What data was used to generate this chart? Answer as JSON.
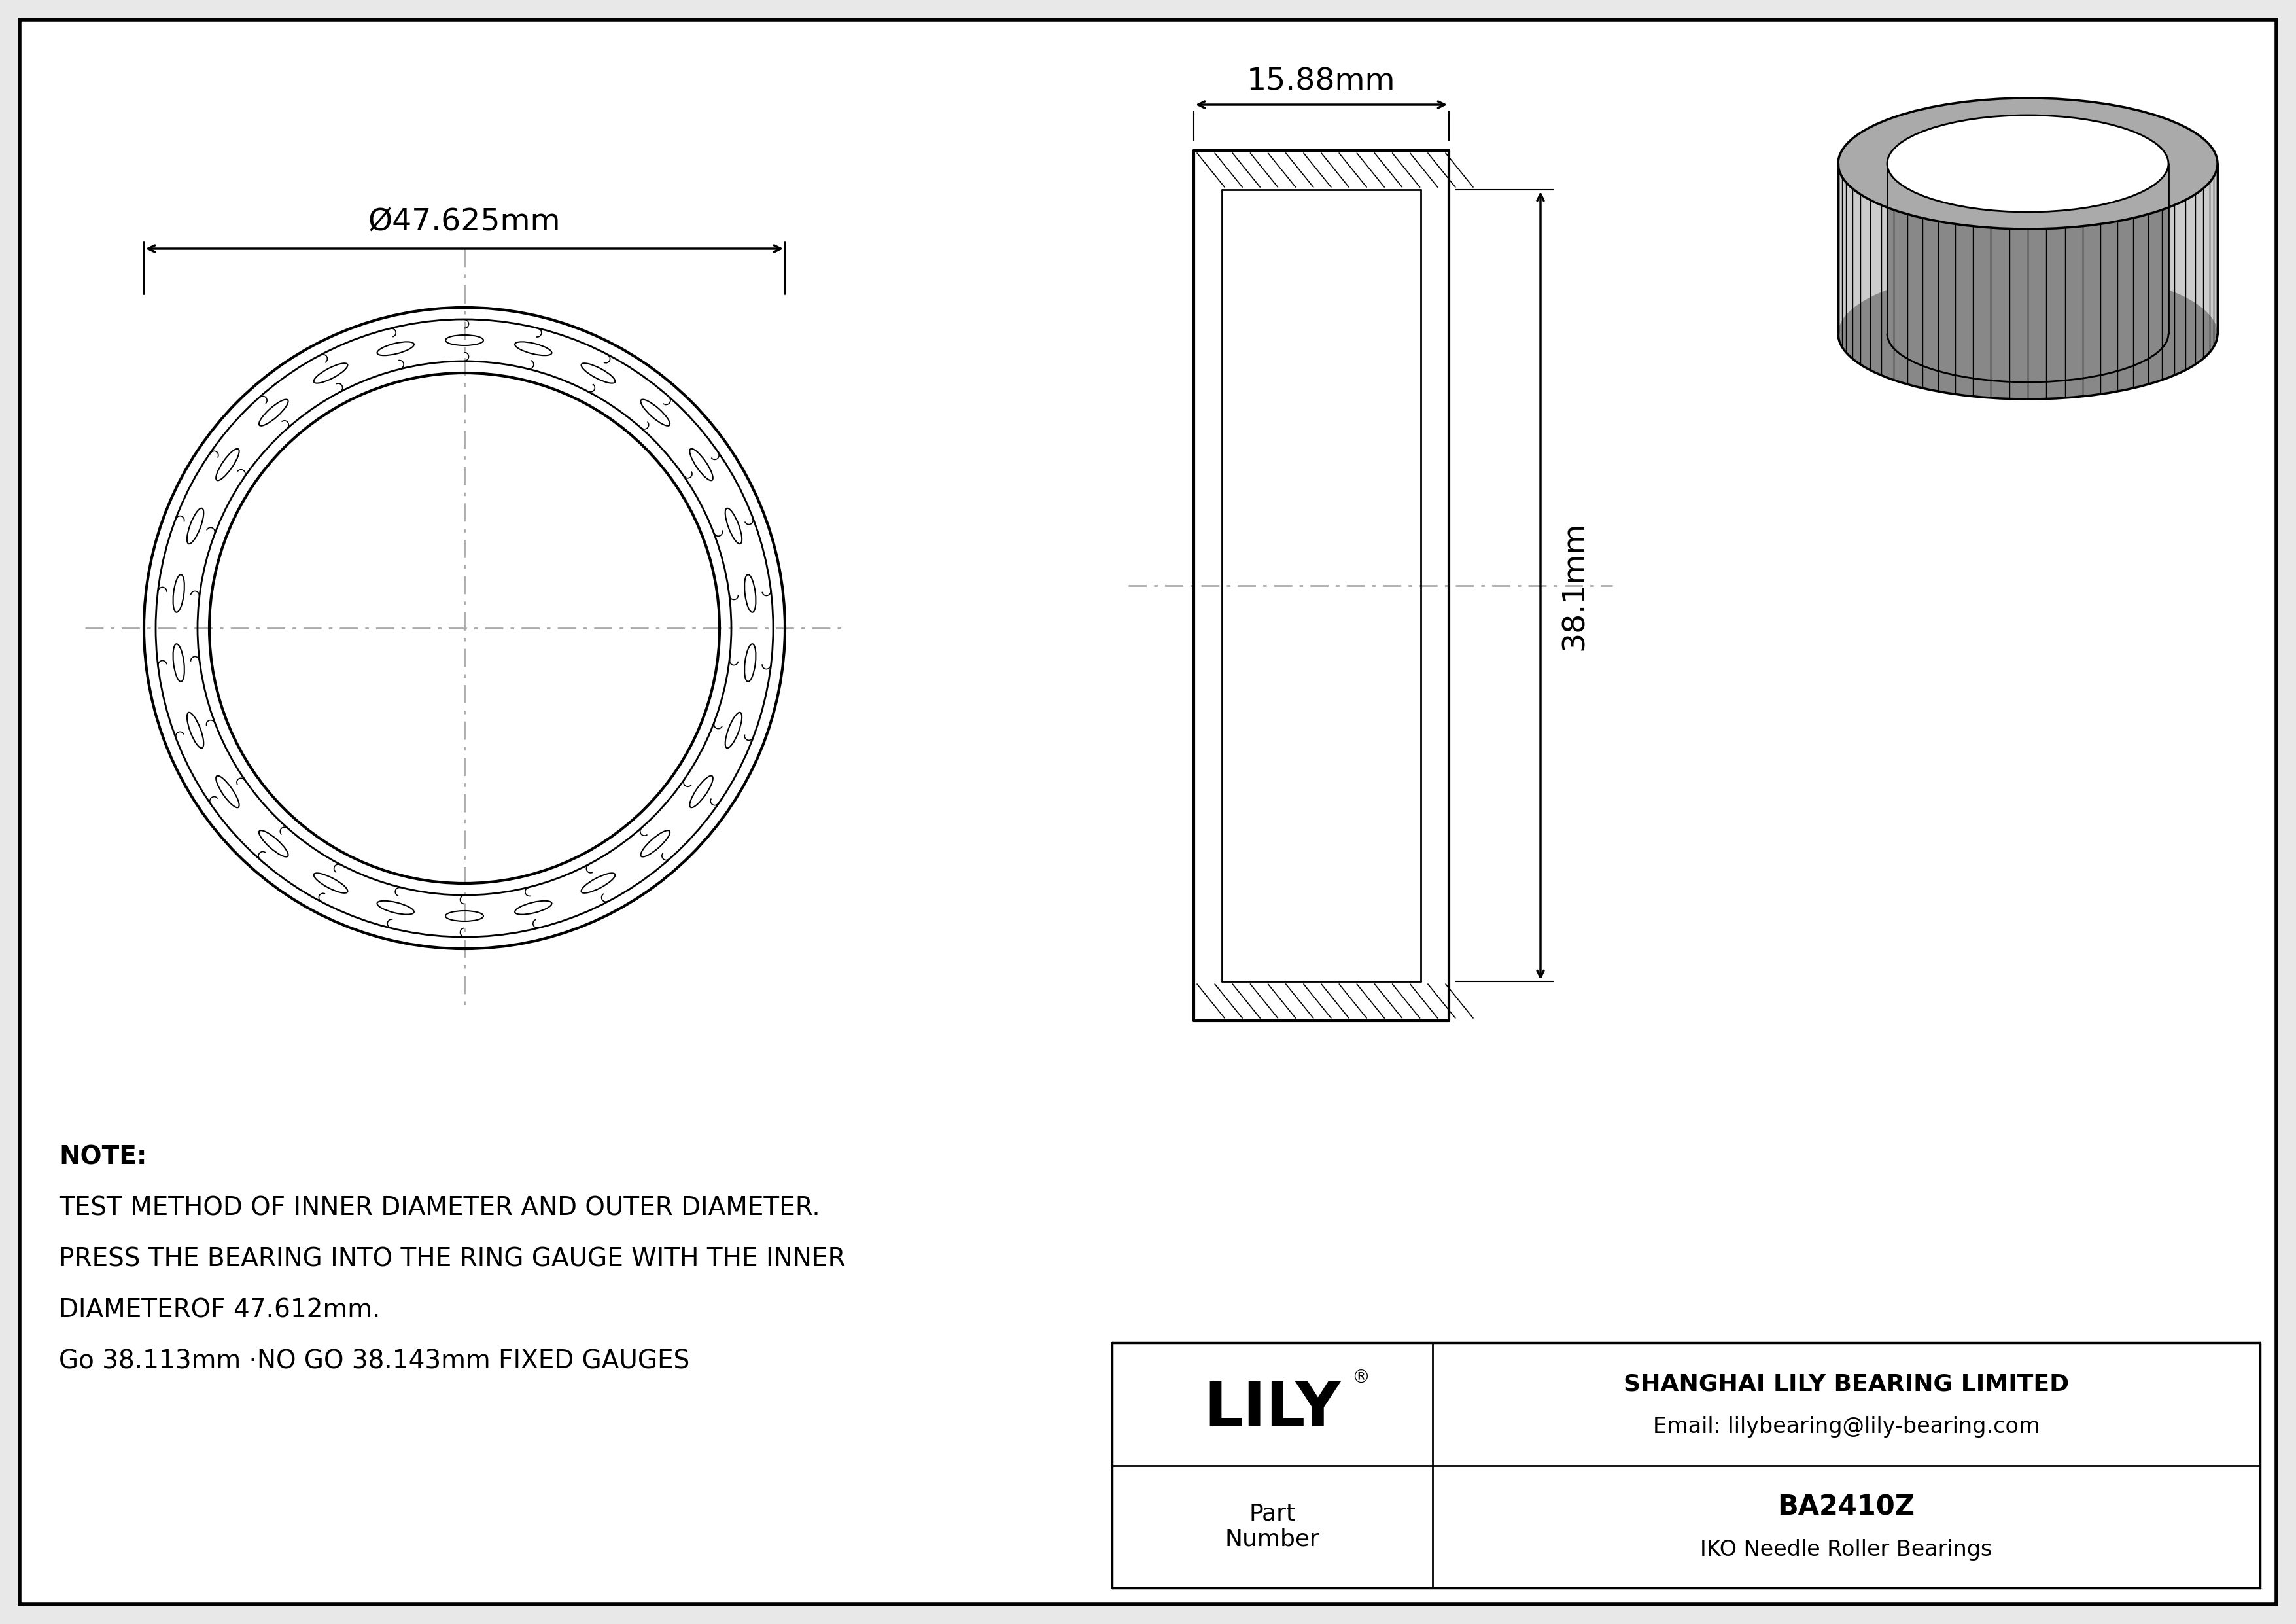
{
  "bg_color": "#e8e8e8",
  "line_color": "#000000",
  "white": "#ffffff",
  "outer_diameter_label": "Ø47.625mm",
  "width_label": "15.88mm",
  "height_label": "38.1mm",
  "note_lines": [
    "NOTE:",
    "TEST METHOD OF INNER DIAMETER AND OUTER DIAMETER.",
    "PRESS THE BEARING INTO THE RING GAUGE WITH THE INNER",
    "DIAMETEROF 47.612mm.",
    "Go 38.113mm ·NO GO 38.143mm FIXED GAUGES"
  ],
  "company_name": "SHANGHAI LILY BEARING LIMITED",
  "company_email": "Email: lilybearing@lily-bearing.com",
  "lily_logo": "LILY",
  "part_label": "Part\nNumber",
  "part_number": "BA2410Z",
  "part_desc": "IKO Needle Roller Bearings",
  "dim_color": "#000000",
  "centerline_color": "#aaaaaa",
  "gray_3d": "#aaaaaa",
  "gray_3d_dark": "#888888",
  "gray_3d_side": "#cccccc"
}
